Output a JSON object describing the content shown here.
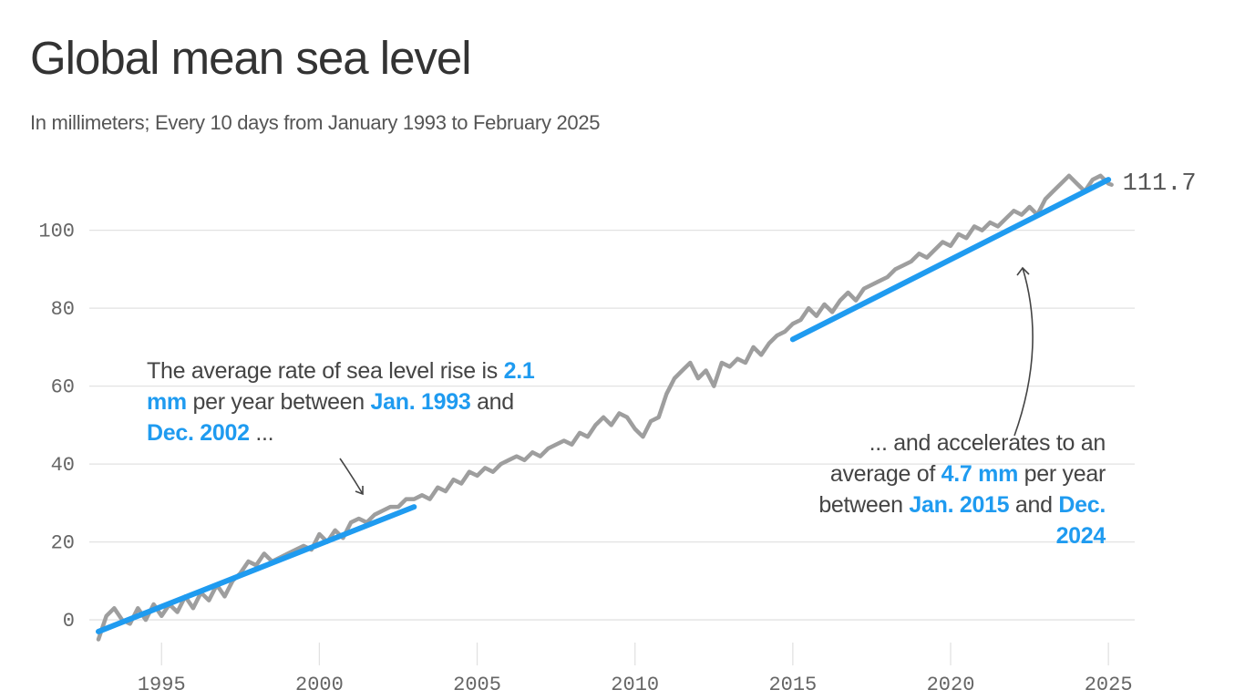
{
  "title": "Global mean sea level",
  "subtitle": "In millimeters; Every 10 days from January 1993 to February 2025",
  "chart_data": {
    "type": "line",
    "title": "Global mean sea level",
    "subtitle": "In millimeters; Every 10 days from January 1993 to February 2025",
    "xlabel": "",
    "ylabel": "",
    "xlim": [
      1993,
      2025.4
    ],
    "ylim": [
      -7,
      117
    ],
    "x_ticks": [
      1995,
      2000,
      2005,
      2010,
      2015,
      2020,
      2025
    ],
    "y_ticks": [
      0,
      20,
      40,
      60,
      80,
      100
    ],
    "grid": "horizontal",
    "colors": {
      "observed": "#9e9e9e",
      "trend": "#1f9bf0"
    },
    "series": [
      {
        "name": "",
        "x": [
          1993.0,
          1993.25,
          1993.5,
          1993.75,
          1994.0,
          1994.25,
          1994.5,
          1994.75,
          1995.0,
          1995.25,
          1995.5,
          1995.75,
          1996.0,
          1996.25,
          1996.5,
          1996.75,
          1997.0,
          1997.25,
          1997.5,
          1997.75,
          1998.0,
          1998.25,
          1998.5,
          1998.75,
          1999.0,
          1999.25,
          1999.5,
          1999.75,
          2000.0,
          2000.25,
          2000.5,
          2000.75,
          2001.0,
          2001.25,
          2001.5,
          2001.75,
          2002.0,
          2002.25,
          2002.5,
          2002.75,
          2003.0,
          2003.25,
          2003.5,
          2003.75,
          2004.0,
          2004.25,
          2004.5,
          2004.75,
          2005.0,
          2005.25,
          2005.5,
          2005.75,
          2006.0,
          2006.25,
          2006.5,
          2006.75,
          2007.0,
          2007.25,
          2007.5,
          2007.75,
          2008.0,
          2008.25,
          2008.5,
          2008.75,
          2009.0,
          2009.25,
          2009.5,
          2009.75,
          2010.0,
          2010.25,
          2010.5,
          2010.75,
          2011.0,
          2011.25,
          2011.5,
          2011.75,
          2012.0,
          2012.25,
          2012.5,
          2012.75,
          2013.0,
          2013.25,
          2013.5,
          2013.75,
          2014.0,
          2014.25,
          2014.5,
          2014.75,
          2015.0,
          2015.25,
          2015.5,
          2015.75,
          2016.0,
          2016.25,
          2016.5,
          2016.75,
          2017.0,
          2017.25,
          2017.5,
          2017.75,
          2018.0,
          2018.25,
          2018.5,
          2018.75,
          2019.0,
          2019.25,
          2019.5,
          2019.75,
          2020.0,
          2020.25,
          2020.5,
          2020.75,
          2021.0,
          2021.25,
          2021.5,
          2021.75,
          2022.0,
          2022.25,
          2022.5,
          2022.75,
          2023.0,
          2023.25,
          2023.5,
          2023.75,
          2024.0,
          2024.25,
          2024.5,
          2024.75,
          2025.0,
          2025.1
        ],
        "values": [
          -5,
          1,
          3,
          0,
          -1,
          3,
          0,
          4,
          1,
          4,
          2,
          6,
          3,
          7,
          5,
          9,
          6,
          10,
          12,
          15,
          14,
          17,
          15,
          16,
          17,
          18,
          19,
          18,
          22,
          20,
          23,
          21,
          25,
          26,
          25,
          27,
          28,
          29,
          29,
          31,
          31,
          32,
          31,
          34,
          33,
          36,
          35,
          38,
          37,
          39,
          38,
          40,
          41,
          42,
          41,
          43,
          42,
          44,
          45,
          46,
          45,
          48,
          47,
          50,
          52,
          50,
          53,
          52,
          49,
          47,
          51,
          52,
          58,
          62,
          64,
          66,
          62,
          64,
          60,
          66,
          65,
          67,
          66,
          70,
          68,
          71,
          73,
          74,
          76,
          77,
          80,
          78,
          81,
          79,
          82,
          84,
          82,
          85,
          86,
          87,
          88,
          90,
          91,
          92,
          94,
          93,
          95,
          97,
          96,
          99,
          98,
          101,
          100,
          102,
          101,
          103,
          105,
          104,
          106,
          104,
          108,
          110,
          112,
          114,
          112,
          110,
          113,
          114,
          112,
          111.7
        ]
      },
      {
        "name": "",
        "type": "trend",
        "x": [
          1993.0,
          2003.0
        ],
        "values": [
          -3,
          29
        ]
      },
      {
        "name": "",
        "type": "trend",
        "x": [
          2015.0,
          2025.0
        ],
        "values": [
          72,
          113
        ]
      }
    ],
    "end_label": "111.7",
    "annotations": [
      {
        "parts": [
          {
            "text": "The average rate of sea level rise is ",
            "highlight": false
          },
          {
            "text": "2.1 mm",
            "highlight": true
          },
          {
            "text": " per year between ",
            "highlight": false
          },
          {
            "text": "Jan. 1993",
            "highlight": true
          },
          {
            "text": " and ",
            "highlight": false
          },
          {
            "text": "Dec. 2002",
            "highlight": true
          },
          {
            "text": " ...",
            "highlight": false
          }
        ]
      },
      {
        "parts": [
          {
            "text": "... and accelerates to an average of ",
            "highlight": false
          },
          {
            "text": "4.7 mm",
            "highlight": true
          },
          {
            "text": " per year between ",
            "highlight": false
          },
          {
            "text": "Jan. 2015",
            "highlight": true
          },
          {
            "text": " and ",
            "highlight": false
          },
          {
            "text": "Dec. 2024",
            "highlight": true
          }
        ]
      }
    ]
  }
}
